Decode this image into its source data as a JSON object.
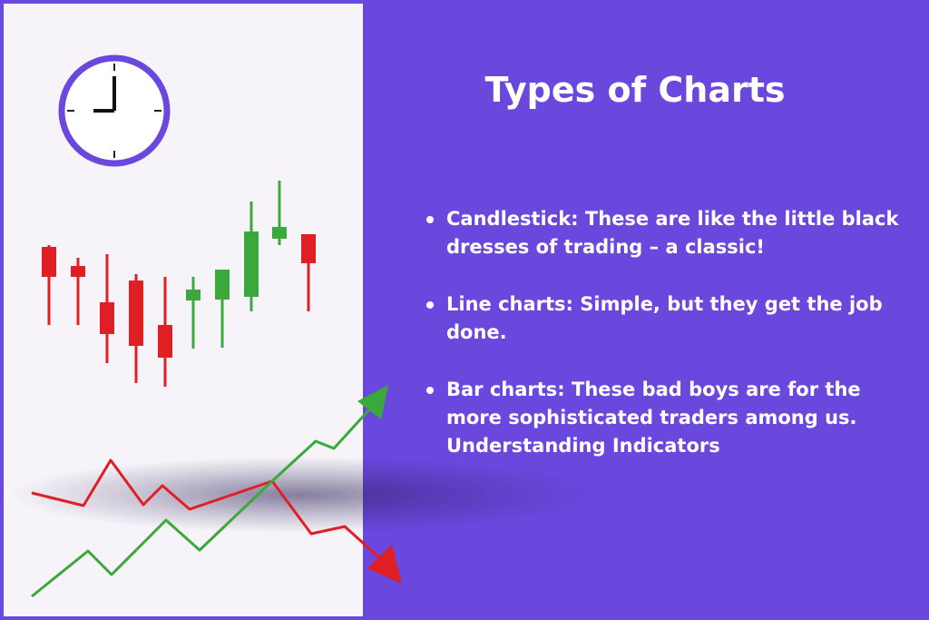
{
  "title": "Types of Charts",
  "items": [
    {
      "text": "Candlestick: These are like the little black dresses of trading – a classic!"
    },
    {
      "text": "Line charts: Simple, but they get the job done."
    },
    {
      "text": "Bar charts: These bad boys are for the more sophisticated traders among us. Understanding Indicators"
    }
  ],
  "colors": {
    "background": "#6a47dd",
    "panel": "#f6f4f9",
    "up": "#3aa83a",
    "down": "#e01f25",
    "clock": "#6a47dd"
  },
  "icons": [
    "clock-icon",
    "candlestick-chart-illustration",
    "line-chart-illustration"
  ]
}
